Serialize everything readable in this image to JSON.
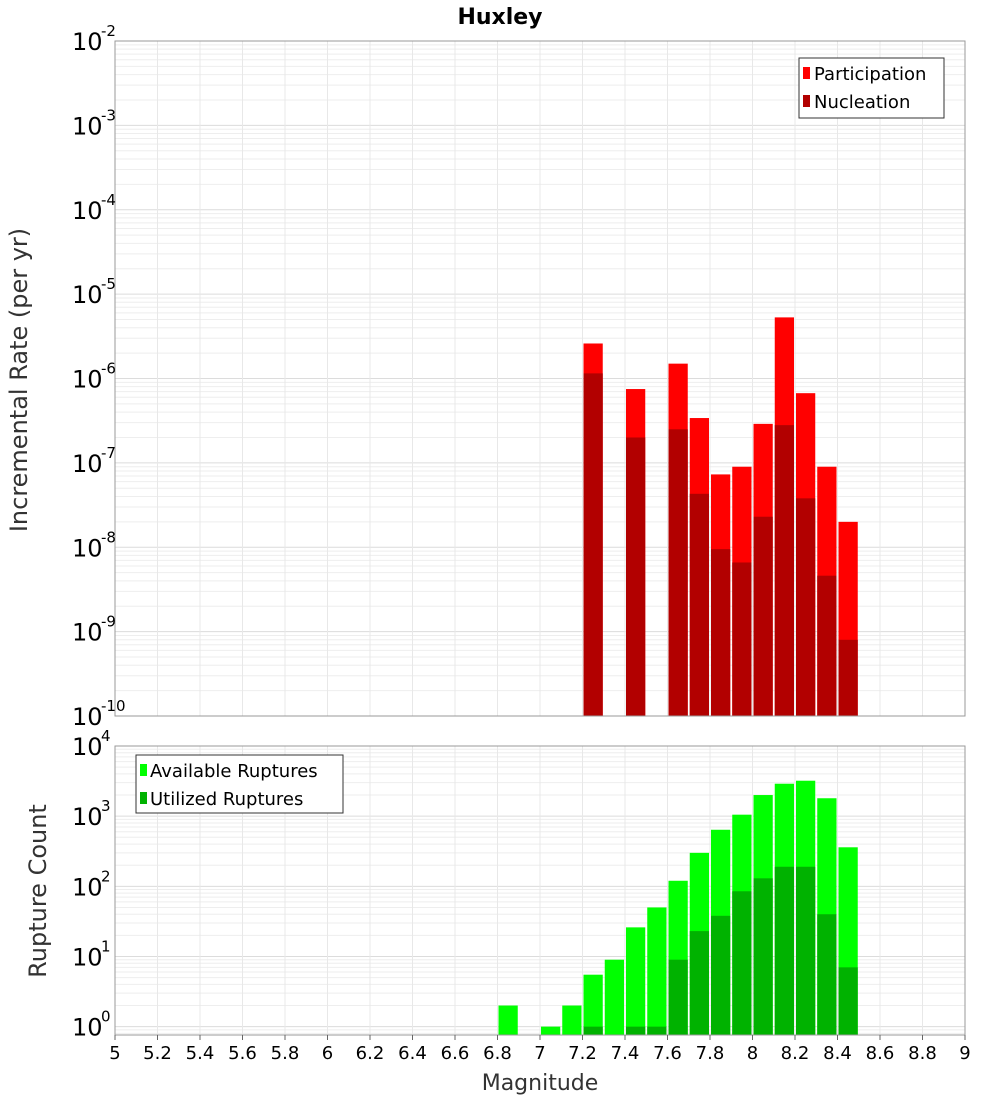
{
  "chart_data": [
    {
      "type": "bar",
      "title": "Huxley",
      "ylabel": "Incremental Rate (per yr)",
      "xlabel": "",
      "yscale": "log",
      "ylim": [
        1e-10,
        0.01
      ],
      "xlim": [
        5,
        9
      ],
      "bar_width": 0.1,
      "grid": true,
      "legend": "top-right",
      "x": [
        7.25,
        7.45,
        7.65,
        7.75,
        7.85,
        7.95,
        8.05,
        8.15,
        8.25,
        8.35,
        8.45
      ],
      "series": [
        {
          "name": "Participation",
          "color": "#ff0000",
          "values": [
            2.6e-06,
            7.5e-07,
            1.5e-06,
            3.4e-07,
            7.3e-08,
            9e-08,
            2.9e-07,
            5.3e-06,
            6.7e-07,
            9e-08,
            2e-08
          ]
        },
        {
          "name": "Nucleation",
          "color": "#b20000",
          "values": [
            1.15e-06,
            2e-07,
            2.5e-07,
            4.3e-08,
            9.5e-09,
            6.6e-09,
            2.3e-08,
            2.8e-07,
            3.8e-08,
            4.6e-09,
            8e-10
          ]
        }
      ]
    },
    {
      "type": "bar",
      "title": "",
      "ylabel": "Rupture Count",
      "xlabel": "Magnitude",
      "yscale": "log",
      "ylim": [
        0.76,
        10000.0
      ],
      "xlim": [
        5,
        9
      ],
      "bar_width": 0.1,
      "grid": true,
      "legend": "top-left",
      "x": [
        6.85,
        7.05,
        7.15,
        7.25,
        7.35,
        7.45,
        7.55,
        7.65,
        7.75,
        7.85,
        7.95,
        8.05,
        8.15,
        8.25,
        8.35,
        8.45
      ],
      "x_ticks": [
        "5",
        "5.2",
        "5.4",
        "5.6",
        "5.8",
        "6",
        "6.2",
        "6.4",
        "6.6",
        "6.8",
        "7",
        "7.2",
        "7.4",
        "7.6",
        "7.8",
        "8",
        "8.2",
        "8.4",
        "8.6",
        "8.8",
        "9"
      ],
      "series": [
        {
          "name": "Available Ruptures",
          "color": "#00ff00",
          "values": [
            2,
            1,
            2,
            5.5,
            9,
            26,
            50,
            120,
            300,
            640,
            1050,
            2000,
            2900,
            3200,
            1800,
            360
          ]
        },
        {
          "name": "Utilized Ruptures",
          "color": "#00b200",
          "values": [
            0,
            0,
            0,
            1,
            0,
            1,
            1,
            9,
            23,
            38,
            85,
            130,
            190,
            190,
            40,
            7
          ]
        }
      ]
    }
  ]
}
